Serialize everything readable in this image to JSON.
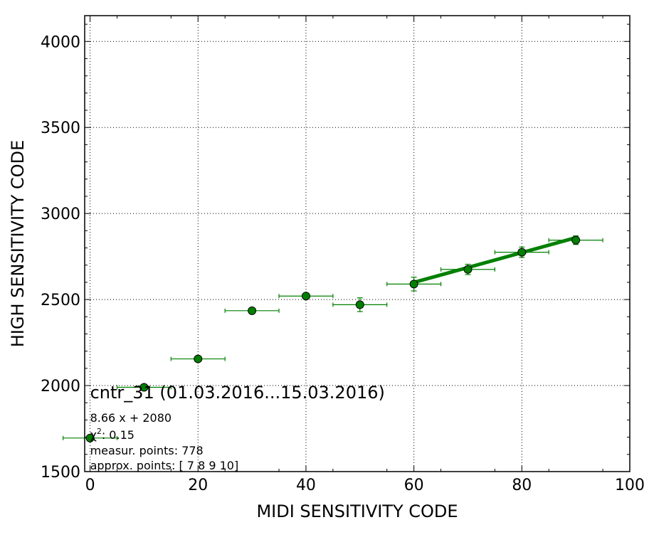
{
  "chart_data": {
    "type": "scatter",
    "title": "",
    "xlabel": "MIDI SENSITIVITY CODE",
    "ylabel": "HIGH SENSITIVITY CODE",
    "xlim": [
      -1,
      100
    ],
    "ylim": [
      1500,
      4150
    ],
    "x_ticks": [
      0,
      20,
      40,
      60,
      80,
      100
    ],
    "y_ticks": [
      1500,
      2000,
      2500,
      3000,
      3500,
      4000
    ],
    "grid": true,
    "colors": {
      "series": "#008000",
      "marker_edge": "#000000",
      "fit": "#008000"
    },
    "series": [
      {
        "points": [
          {
            "x": 0,
            "y": 1695,
            "xerr": 5,
            "yerr": 0
          },
          {
            "x": 10,
            "y": 1990,
            "xerr": 5,
            "yerr": 0
          },
          {
            "x": 20,
            "y": 2155,
            "xerr": 5,
            "yerr": 0
          },
          {
            "x": 30,
            "y": 2435,
            "xerr": 5,
            "yerr": 0
          },
          {
            "x": 40,
            "y": 2520,
            "xerr": 5,
            "yerr": 15
          },
          {
            "x": 50,
            "y": 2470,
            "xerr": 5,
            "yerr": 40
          },
          {
            "x": 60,
            "y": 2590,
            "xerr": 5,
            "yerr": 40
          },
          {
            "x": 70,
            "y": 2675,
            "xerr": 5,
            "yerr": 30
          },
          {
            "x": 80,
            "y": 2775,
            "xerr": 5,
            "yerr": 30
          },
          {
            "x": 90,
            "y": 2845,
            "xerr": 5,
            "yerr": 25
          }
        ]
      }
    ],
    "fit_line": {
      "slope": 8.66,
      "intercept": 2080,
      "x_range": [
        60,
        90
      ]
    },
    "annotations": {
      "title": "cntr_31 (01.03.2016...15.03.2016)",
      "equation": "8.66 x + 2080",
      "chi2_symbol": "χ",
      "chi2_sup": "2",
      "chi2_value": ": 0.15",
      "measur_points": "measur. points: 778",
      "approx_points": "approx. points: [ 7  8  9 10]"
    }
  }
}
